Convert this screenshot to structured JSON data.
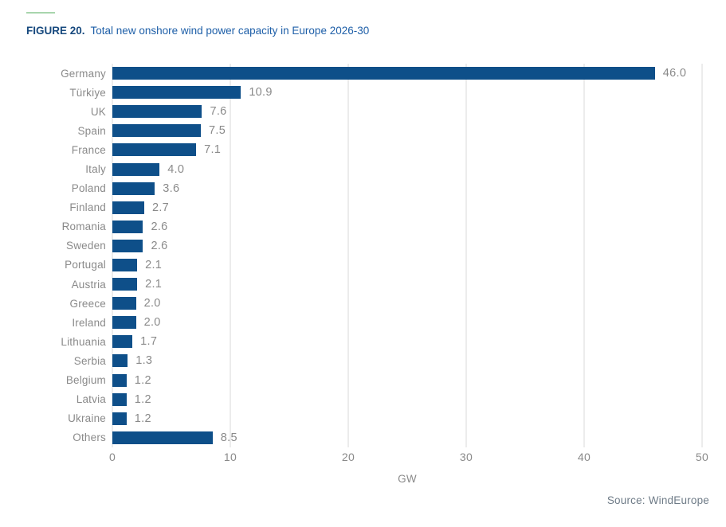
{
  "header": {
    "figure_label": "FIGURE 20.",
    "title": "Total new onshore wind power capacity in Europe 2026-30"
  },
  "chart_data": {
    "type": "bar",
    "orientation": "horizontal",
    "title": "Total new onshore wind power capacity in Europe 2026-30",
    "categories": [
      "Germany",
      "Türkiye",
      "UK",
      "Spain",
      "France",
      "Italy",
      "Poland",
      "Finland",
      "Romania",
      "Sweden",
      "Portugal",
      "Austria",
      "Greece",
      "Ireland",
      "Lithuania",
      "Serbia",
      "Belgium",
      "Latvia",
      "Ukraine",
      "Others"
    ],
    "values": [
      46.0,
      10.9,
      7.6,
      7.5,
      7.1,
      4.0,
      3.6,
      2.7,
      2.6,
      2.6,
      2.1,
      2.1,
      2.0,
      2.0,
      1.7,
      1.3,
      1.2,
      1.2,
      1.2,
      8.5
    ],
    "value_labels": [
      "46.0",
      "10.9",
      "7.6",
      "7.5",
      "7.1",
      "4.0",
      "3.6",
      "2.7",
      "2.6",
      "2.6",
      "2.1",
      "2.1",
      "2.0",
      "2.0",
      "1.7",
      "1.3",
      "1.2",
      "1.2",
      "1.2",
      "8.5"
    ],
    "xlabel": "GW",
    "ylabel": "",
    "xlim": [
      0,
      50
    ],
    "xticks": [
      0,
      10,
      20,
      30,
      40,
      50
    ],
    "grid": "vertical-gridlines-on",
    "legend": "none"
  },
  "footer": {
    "source": "Source: WindEurope"
  },
  "colors": {
    "bar": "#0e4f89",
    "accent_line": "#a8d5ad",
    "figure_label": "#17497e",
    "title_text": "#1e5fa8",
    "axis_text": "#8a8a8a",
    "gridline": "#d9d9d9",
    "source_text": "#6e7b87"
  }
}
